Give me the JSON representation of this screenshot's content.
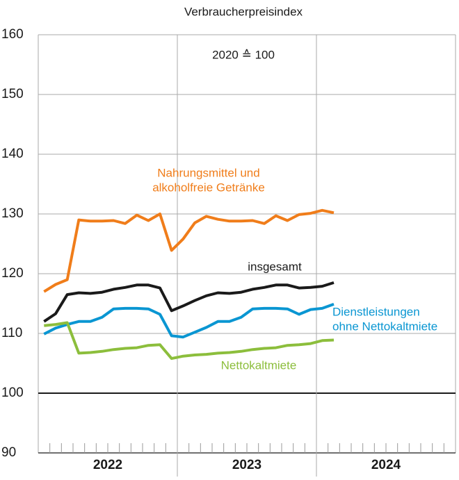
{
  "chart_data": {
    "type": "line",
    "title": "Verbraucherpreisindex",
    "annotation": "2020 ≙ 100",
    "categories": [
      null,
      null,
      null,
      null,
      null,
      null,
      null,
      null,
      null,
      null,
      null,
      null,
      null,
      null,
      null,
      null,
      null,
      null,
      null,
      null,
      null,
      null,
      null,
      null,
      null,
      null,
      null,
      null,
      null,
      null,
      null,
      null,
      null,
      null,
      null,
      null
    ],
    "year_groups": [
      "2022",
      "2023",
      "2024"
    ],
    "ylim": [
      90,
      160
    ],
    "yticks": [
      90,
      100,
      110,
      120,
      130,
      140,
      150,
      160
    ],
    "grid": true,
    "reference_line": 100,
    "series": [
      {
        "name": [
          "Nahrungsmittel und",
          "alkoholfreie Getränke"
        ],
        "color": "#f07d1a",
        "values": [
          117,
          118.2,
          119,
          129,
          128.8,
          128.8,
          128.9,
          128.4,
          129.8,
          128.9,
          130,
          123.9,
          125.8,
          128.5,
          129.6,
          129.1,
          128.8,
          128.8,
          128.9,
          128.4,
          129.7,
          128.9,
          129.9,
          130.1,
          130.6,
          130.2,
          null,
          null,
          null,
          null,
          null,
          null,
          null,
          null,
          null,
          null
        ]
      },
      {
        "name": [
          "insgesamt"
        ],
        "color": "#1a1a1a",
        "values": [
          112,
          113.3,
          116.5,
          116.8,
          116.7,
          116.9,
          117.4,
          117.7,
          118.1,
          118.1,
          117.6,
          113.8,
          114.6,
          115.5,
          116.3,
          116.8,
          116.7,
          116.9,
          117.4,
          117.7,
          118.1,
          118.1,
          117.6,
          117.7,
          117.9,
          118.5,
          null,
          null,
          null,
          null,
          null,
          null,
          null,
          null,
          null,
          null
        ]
      },
      {
        "name": [
          "Dienstleistungen",
          "ohne Nettokaltmiete"
        ],
        "color": "#0a96d2",
        "values": [
          109.9,
          110.9,
          111.5,
          112,
          112,
          112.7,
          114.1,
          114.2,
          114.2,
          114.1,
          113.2,
          109.6,
          109.4,
          110.2,
          111,
          112,
          112,
          112.7,
          114.1,
          114.2,
          114.2,
          114.1,
          113.2,
          114,
          114.2,
          114.9,
          null,
          null,
          null,
          null,
          null,
          null,
          null,
          null,
          null,
          null
        ]
      },
      {
        "name": [
          "Nettokaltmiete"
        ],
        "color": "#8cbe3c",
        "values": [
          111.3,
          111.5,
          111.8,
          106.7,
          106.8,
          107,
          107.3,
          107.5,
          107.6,
          108,
          108.1,
          105.8,
          106.2,
          106.4,
          106.5,
          106.7,
          106.8,
          107,
          107.3,
          107.5,
          107.6,
          108,
          108.1,
          108.3,
          108.8,
          108.9,
          null,
          null,
          null,
          null,
          null,
          null,
          null,
          null,
          null,
          null
        ]
      }
    ]
  }
}
